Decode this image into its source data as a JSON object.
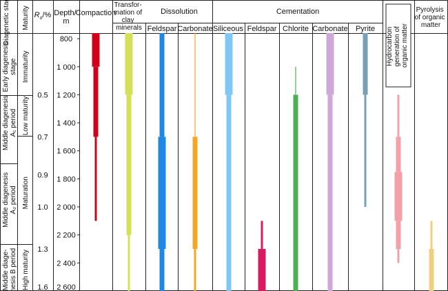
{
  "headers": {
    "stages": "Diagenetic stages",
    "maturity": "Maturity",
    "ro_prefix": "R",
    "ro_sub": "o",
    "ro_suffix": "/%",
    "depth": [
      "Depth/",
      "m"
    ],
    "compaction": "Compaction",
    "transformation": [
      "Transfor-",
      "mation of",
      "clay",
      "minerals"
    ],
    "dissolution": "Dissolution",
    "cementation": "Cementation",
    "diss_feldspar": "Feldspar",
    "diss_carbonate": "Carbonate",
    "siliceous": "Siliceous",
    "cem_feldspar": "Feldspar",
    "chlorite": "Chlorite",
    "cem_carbonate": "Carbonate",
    "pyrite": "Pyrite",
    "hydrocarbon": [
      "Hydrocarbon",
      "generation of",
      "organic matter"
    ],
    "pyrolysis": [
      "Pyrolysis",
      "of organic",
      "matter"
    ]
  },
  "stages": [
    {
      "lines": [
        "Early diagenesis",
        "stage"
      ],
      "from": 800,
      "to": 1200
    },
    {
      "lines": [
        "Middle diagenesis",
        "A₁ period"
      ],
      "from": 1200,
      "to": 1600
    },
    {
      "lines": [
        "Middle diagenesis",
        "A₂ period"
      ],
      "from": 1600,
      "to": 2300
    },
    {
      "lines": [
        "Middle diage-",
        "nesis B period"
      ],
      "from": 2300,
      "to": 2600
    }
  ],
  "maturity": [
    {
      "label": "Immaturity",
      "from": 800,
      "to": 1200
    },
    {
      "label": "Low maturity",
      "from": 1200,
      "to": 1500
    },
    {
      "label": "Maturation",
      "from": 1500,
      "to": 2300
    },
    {
      "label": "High maturity",
      "from": 2300,
      "to": 2600
    }
  ],
  "ro_ticks": [
    {
      "label": "0.5",
      "depth": 1200
    },
    {
      "label": "0.7",
      "depth": 1500
    },
    {
      "label": "0.9",
      "depth": 1770
    },
    {
      "label": "1.0",
      "depth": 2000
    },
    {
      "label": "1.3",
      "depth": 2300
    },
    {
      "label": "1.6",
      "depth": 2600
    }
  ],
  "depth_ticks": [
    {
      "label": "800",
      "depth": 800
    },
    {
      "label": "1 000",
      "depth": 1000
    },
    {
      "label": "1 200",
      "depth": 1200
    },
    {
      "label": "1 400",
      "depth": 1400
    },
    {
      "label": "1 600",
      "depth": 1600
    },
    {
      "label": "1 800",
      "depth": 1800
    },
    {
      "label": "2 000",
      "depth": 2000
    },
    {
      "label": "2 200",
      "depth": 2200
    },
    {
      "label": "2 400",
      "depth": 2400
    },
    {
      "label": "2 600",
      "depth": 2600
    }
  ],
  "depth_range": [
    760,
    2600
  ],
  "colors": {
    "compaction": "#d0021b",
    "clay": "#d4e157",
    "diss_feldspar": "#1e88e5",
    "diss_carbonate": "#f5a623",
    "siliceous": "#81c7f5",
    "cem_feldspar": "#d81b60",
    "chlorite": "#4caf50",
    "cem_carbonate": "#cea8d8",
    "pyrite": "#78a0b4",
    "hydrocarbon": "#f4a0a8",
    "pyrolysis": "#f0d080"
  },
  "intensity_bars": [
    {
      "key": "compaction",
      "segments": [
        {
          "from": 760,
          "to": 1000,
          "level": 3
        },
        {
          "from": 1000,
          "to": 1500,
          "level": 2
        },
        {
          "from": 1500,
          "to": 2100,
          "level": 1
        }
      ]
    },
    {
      "key": "clay",
      "segments": [
        {
          "from": 760,
          "to": 1200,
          "level": 3
        },
        {
          "from": 1200,
          "to": 2200,
          "level": 2
        },
        {
          "from": 2200,
          "to": 2600,
          "level": 1
        }
      ]
    },
    {
      "key": "diss_feldspar",
      "segments": [
        {
          "from": 760,
          "to": 1500,
          "level": 2
        },
        {
          "from": 1500,
          "to": 2300,
          "level": 3
        },
        {
          "from": 2300,
          "to": 2600,
          "level": 2
        }
      ]
    },
    {
      "key": "diss_carbonate",
      "segments": [
        {
          "from": 760,
          "to": 1500,
          "level": 0
        },
        {
          "from": 1500,
          "to": 2300,
          "level": 2
        },
        {
          "from": 2300,
          "to": 2600,
          "level": 1
        }
      ]
    },
    {
      "key": "siliceous",
      "segments": [
        {
          "from": 760,
          "to": 1200,
          "level": 3
        },
        {
          "from": 1200,
          "to": 2600,
          "level": 2
        }
      ]
    },
    {
      "key": "cem_feldspar",
      "segments": [
        {
          "from": 2100,
          "to": 2300,
          "level": 1
        },
        {
          "from": 2300,
          "to": 2600,
          "level": 3
        }
      ]
    },
    {
      "key": "chlorite",
      "segments": [
        {
          "from": 1000,
          "to": 1200,
          "level": 0
        },
        {
          "from": 1200,
          "to": 2600,
          "level": 2
        }
      ]
    },
    {
      "key": "cem_carbonate",
      "segments": [
        {
          "from": 760,
          "to": 1200,
          "level": 3
        },
        {
          "from": 1200,
          "to": 2600,
          "level": 2
        }
      ]
    },
    {
      "key": "pyrite",
      "segments": [
        {
          "from": 760,
          "to": 1200,
          "level": 2
        },
        {
          "from": 1200,
          "to": 2000,
          "level": 1
        }
      ]
    },
    {
      "key": "hydrocarbon",
      "segments": [
        {
          "from": 1200,
          "to": 1500,
          "level": 1
        },
        {
          "from": 1500,
          "to": 1750,
          "level": 2
        },
        {
          "from": 1750,
          "to": 2100,
          "level": 3
        },
        {
          "from": 2100,
          "to": 2300,
          "level": 2
        },
        {
          "from": 2300,
          "to": 2400,
          "level": 1
        }
      ]
    },
    {
      "key": "pyrolysis",
      "segments": [
        {
          "from": 2100,
          "to": 2300,
          "level": 1
        },
        {
          "from": 2300,
          "to": 2600,
          "level": 2
        }
      ]
    }
  ]
}
